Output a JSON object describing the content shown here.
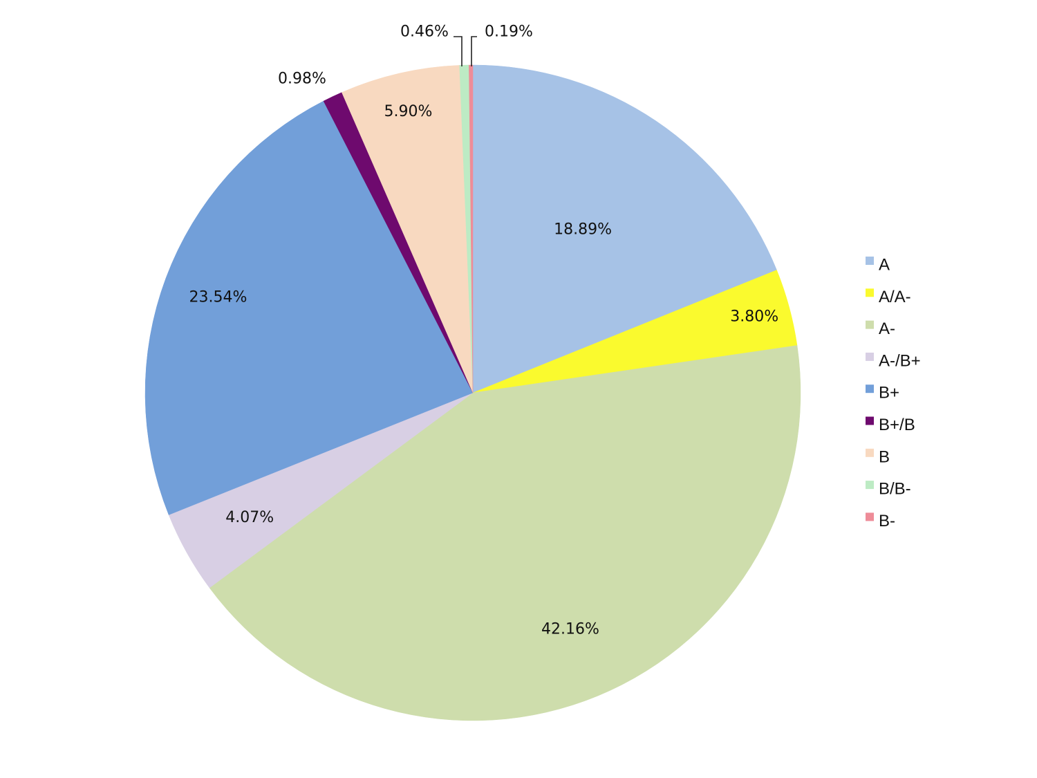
{
  "chart_data": {
    "type": "pie",
    "title": "",
    "start_angle_deg": 0,
    "direction": "clockwise",
    "legend_position": "right",
    "slices": [
      {
        "label": "A",
        "value": 18.89,
        "value_label": "18.89%",
        "color": "#A6C2E6"
      },
      {
        "label": "A/A-",
        "value": 3.8,
        "value_label": "3.80%",
        "color": "#FAFA2E"
      },
      {
        "label": "A-",
        "value": 42.16,
        "value_label": "42.16%",
        "color": "#CEDDAC"
      },
      {
        "label": "A-/B+",
        "value": 4.07,
        "value_label": "4.07%",
        "color": "#D8CFE4"
      },
      {
        "label": "B+",
        "value": 23.54,
        "value_label": "23.54%",
        "color": "#729FD9"
      },
      {
        "label": "B+/B",
        "value": 0.98,
        "value_label": "0.98%",
        "color": "#6E0A6E"
      },
      {
        "label": "B",
        "value": 5.9,
        "value_label": "5.90%",
        "color": "#F8D9C0"
      },
      {
        "label": "B/B-",
        "value": 0.46,
        "value_label": "0.46%",
        "color": "#BDEBC4"
      },
      {
        "label": "B-",
        "value": 0.19,
        "value_label": "0.19%",
        "color": "#EE8C98"
      }
    ]
  }
}
